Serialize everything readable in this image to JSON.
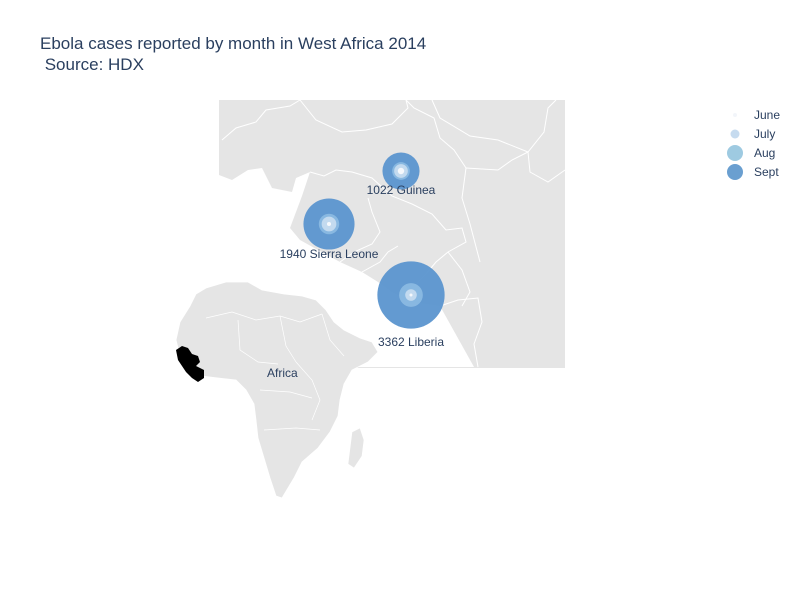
{
  "title": {
    "line1": "Ebola cases reported by month in West Africa 2014",
    "line2": " Source: HDX"
  },
  "legend": [
    {
      "label": "June",
      "color": "#f2f5fa",
      "size": 4
    },
    {
      "label": "July",
      "color": "#c6dbef",
      "size": 9
    },
    {
      "label": "Aug",
      "color": "#9ecae1",
      "size": 16
    },
    {
      "label": "Sept",
      "color": "#6a9fd0",
      "size": 16
    }
  ],
  "colors": {
    "land": "#e5e5e5",
    "border": "#ffffff",
    "highlight": "#000000",
    "bubble_sept": "#5b95cf",
    "bubble_aug": "#8dbbe2",
    "bubble_july": "#c6dbef",
    "bubble_june": "#f5f8fc"
  },
  "locations": [
    {
      "name": "Guinea",
      "label": "1022 Guinea",
      "sept": 1022,
      "aug": 771,
      "july": 460,
      "june": 390
    },
    {
      "name": "Sierra Leone",
      "label": "1940 Sierra Leone",
      "sept": 1940,
      "aug": 1026,
      "july": 533,
      "june": 158
    },
    {
      "name": "Liberia",
      "label": "3362 Liberia",
      "sept": 3362,
      "aug": 1378,
      "july": 329,
      "june": 33
    }
  ],
  "inset": {
    "region_label": "Africa"
  }
}
